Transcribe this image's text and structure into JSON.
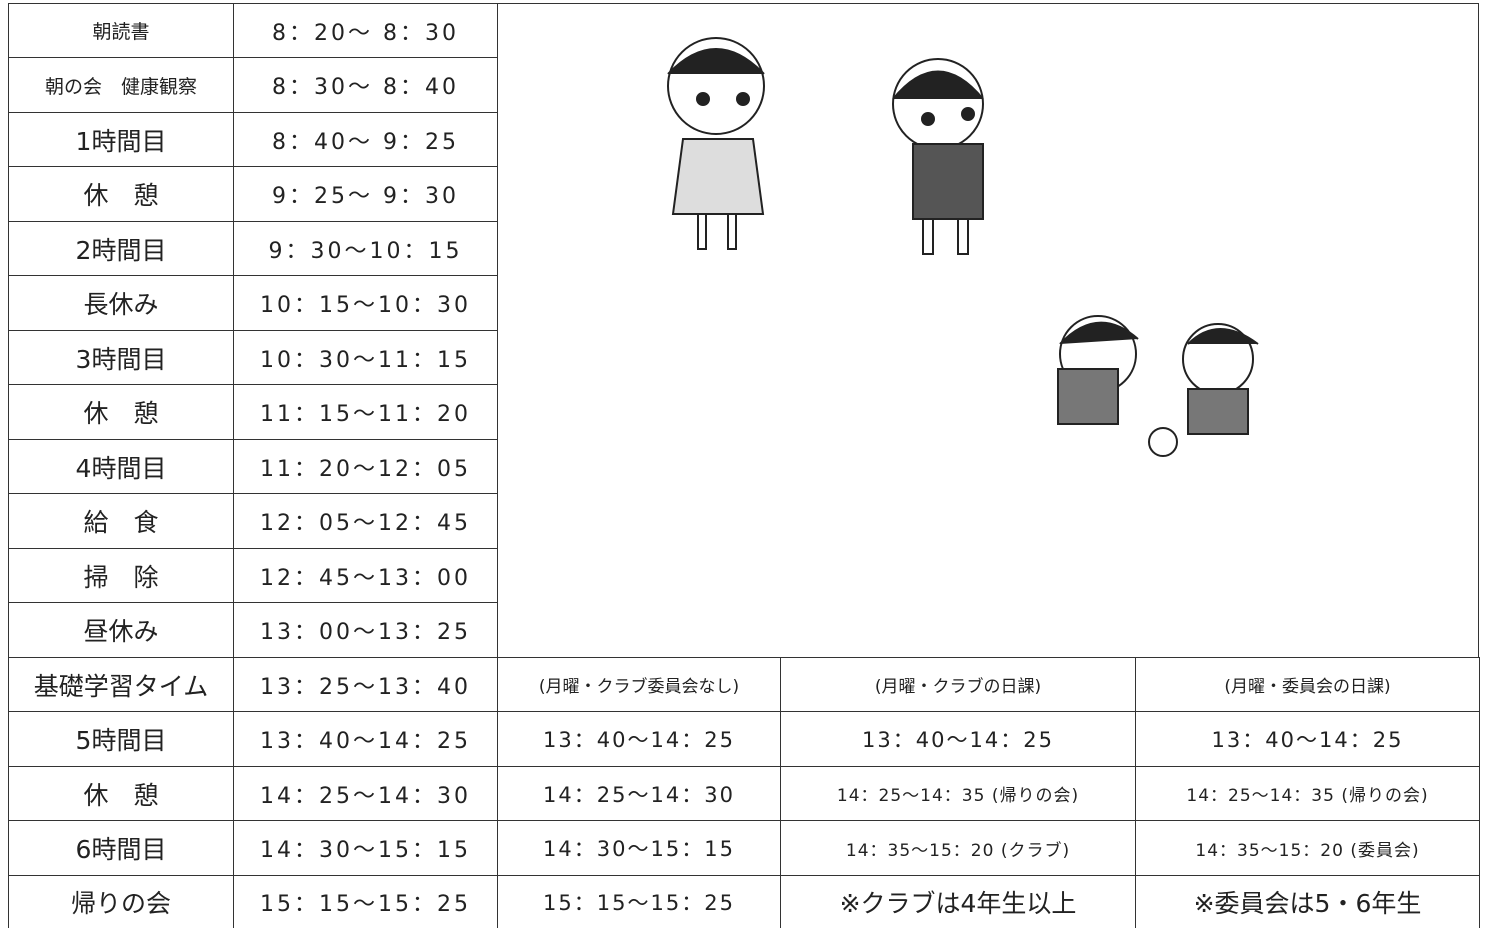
{
  "schedule": {
    "rows": [
      [
        "朝読書",
        "8：20～ 8：30"
      ],
      [
        "朝の会　健康観察",
        "8：30～ 8：40"
      ],
      [
        "1時間目",
        "8：40～ 9：25"
      ],
      [
        "休　憩",
        "9：25～ 9：30"
      ],
      [
        "2時間目",
        "9：30～10：15"
      ],
      [
        "長休み",
        "10：15～10：30"
      ],
      [
        "3時間目",
        "10：30～11：15"
      ],
      [
        "休　憩",
        "11：15～11：20"
      ],
      [
        "4時間目",
        "11：20～12：05"
      ],
      [
        "給　食",
        "12：05～12：45"
      ],
      [
        "掃　除",
        "12：45～13：00"
      ],
      [
        "昼休み",
        "13：00～13：25"
      ],
      [
        "基礎学習タイム",
        "13：25～13：40"
      ],
      [
        "5時間目",
        "13：40～14：25"
      ],
      [
        "休　憩",
        "14：25～14：30"
      ],
      [
        "6時間目",
        "14：30～15：15"
      ],
      [
        "帰りの会",
        "15：15～15：25"
      ]
    ]
  },
  "monday": {
    "headers": [
      "(月曜・クラブ委員会なし)",
      "(月曜・クラブの日課)",
      "(月曜・委員会の日課)"
    ],
    "rows": [
      [
        "13：40～14：25",
        "13：40～14：25",
        "13：40～14：25"
      ],
      [
        "14：25～14：30",
        "14：25～14：35 (帰りの会)",
        "14：25～14：35 (帰りの会)"
      ],
      [
        "14：30～15：15",
        "14：35～15：20 (クラブ)",
        "14：35～15：20 (委員会)"
      ],
      [
        "15：15～15：25",
        "※クラブは4年生以上",
        "※委員会は5・6年生"
      ]
    ]
  }
}
